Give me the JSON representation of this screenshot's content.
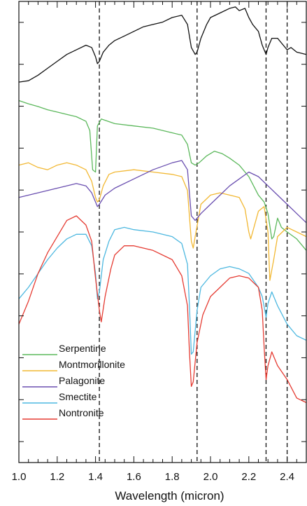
{
  "chart_data": {
    "type": "line",
    "title": "",
    "xlabel": "Wavelength (micron)",
    "ylabel": "",
    "xlim": [
      1.0,
      2.5
    ],
    "ylim": [
      0,
      100
    ],
    "x_ticks": [
      1.0,
      1.2,
      1.4,
      1.6,
      1.8,
      2.0,
      2.2,
      2.4
    ],
    "x_tick_labels": [
      "1.0",
      "1.2",
      "1.4",
      "1.6",
      "1.8",
      "2.0",
      "2.2",
      "2.4"
    ],
    "x_minor_step": 0.05,
    "y_tick_count": 11,
    "vlines": [
      1.42,
      1.93,
      2.29,
      2.4
    ],
    "legend": {
      "placement": "bottom-left"
    },
    "series": [
      {
        "name": "Serpentine",
        "color": "#5cb85c",
        "x": [
          1.0,
          1.05,
          1.1,
          1.15,
          1.2,
          1.25,
          1.3,
          1.35,
          1.37,
          1.385,
          1.4,
          1.41,
          1.43,
          1.5,
          1.6,
          1.7,
          1.8,
          1.85,
          1.88,
          1.9,
          1.92,
          1.94,
          1.98,
          2.02,
          2.06,
          2.1,
          2.15,
          2.2,
          2.25,
          2.28,
          2.3,
          2.32,
          2.33,
          2.35,
          2.37,
          2.4,
          2.45,
          2.5
        ],
        "y": [
          78.5,
          77.8,
          77.2,
          76.5,
          76.0,
          75.5,
          75.0,
          74.0,
          72.0,
          63.5,
          63.0,
          73.0,
          74.5,
          73.5,
          73.0,
          72.5,
          71.5,
          71.0,
          69.0,
          65.0,
          64.5,
          65.0,
          66.5,
          67.5,
          67.0,
          66.0,
          64.5,
          62.0,
          58.0,
          56.5,
          54.0,
          48.5,
          49.0,
          53.0,
          51.0,
          50.0,
          48.5,
          46.0
        ]
      },
      {
        "name": "Montmorillonite",
        "color": "#f2b833",
        "x": [
          1.0,
          1.05,
          1.1,
          1.15,
          1.2,
          1.25,
          1.3,
          1.35,
          1.38,
          1.4,
          1.41,
          1.42,
          1.44,
          1.47,
          1.5,
          1.6,
          1.7,
          1.8,
          1.85,
          1.88,
          1.9,
          1.91,
          1.92,
          1.95,
          2.0,
          2.05,
          2.1,
          2.15,
          2.18,
          2.2,
          2.21,
          2.22,
          2.25,
          2.28,
          2.3,
          2.31,
          2.33,
          2.35,
          2.4,
          2.45,
          2.5
        ],
        "y": [
          64.5,
          65.0,
          64.0,
          63.5,
          64.5,
          65.0,
          64.5,
          63.5,
          61.0,
          57.5,
          56.5,
          57.0,
          60.0,
          62.5,
          63.0,
          63.5,
          63.0,
          62.5,
          62.0,
          59.0,
          48.0,
          46.5,
          49.0,
          56.0,
          58.0,
          58.5,
          58.0,
          57.5,
          55.0,
          50.0,
          48.5,
          50.0,
          54.5,
          55.5,
          50.0,
          39.5,
          44.0,
          49.0,
          51.0,
          50.0,
          49.0
        ]
      },
      {
        "name": "Palagonite",
        "color": "#6a4fb0",
        "x": [
          1.0,
          1.1,
          1.2,
          1.3,
          1.35,
          1.38,
          1.4,
          1.41,
          1.42,
          1.45,
          1.5,
          1.6,
          1.7,
          1.8,
          1.85,
          1.88,
          1.9,
          1.92,
          1.95,
          2.0,
          2.05,
          2.1,
          2.15,
          2.2,
          2.25,
          2.3,
          2.35,
          2.4,
          2.45,
          2.5
        ],
        "y": [
          57.5,
          58.5,
          59.5,
          60.5,
          60.0,
          58.5,
          56.5,
          55.5,
          56.0,
          58.0,
          59.5,
          61.5,
          63.5,
          65.0,
          65.5,
          63.5,
          53.5,
          52.5,
          54.0,
          56.0,
          58.0,
          60.0,
          61.5,
          63.0,
          62.0,
          60.0,
          58.0,
          56.0,
          54.0,
          52.0
        ]
      },
      {
        "name": "Smectite",
        "color": "#4db8e0",
        "x": [
          1.0,
          1.05,
          1.1,
          1.15,
          1.2,
          1.25,
          1.3,
          1.35,
          1.38,
          1.4,
          1.41,
          1.42,
          1.44,
          1.47,
          1.5,
          1.55,
          1.6,
          1.7,
          1.8,
          1.85,
          1.88,
          1.89,
          1.9,
          1.91,
          1.93,
          1.95,
          2.0,
          2.05,
          2.1,
          2.15,
          2.2,
          2.25,
          2.27,
          2.29,
          2.3,
          2.32,
          2.35,
          2.4,
          2.45,
          2.5
        ],
        "y": [
          35.5,
          38.0,
          41.0,
          44.0,
          46.5,
          48.5,
          49.5,
          49.5,
          47.0,
          41.0,
          35.5,
          37.0,
          44.0,
          48.0,
          50.5,
          51.0,
          50.5,
          50.0,
          49.0,
          47.5,
          43.0,
          34.0,
          23.5,
          24.0,
          33.0,
          38.0,
          40.5,
          42.0,
          42.5,
          42.0,
          41.0,
          38.0,
          36.0,
          31.5,
          34.5,
          37.0,
          34.0,
          30.0,
          27.5,
          26.5
        ]
      },
      {
        "name": "Nontronite",
        "color": "#e53b32",
        "x": [
          1.0,
          1.05,
          1.1,
          1.15,
          1.2,
          1.25,
          1.3,
          1.35,
          1.38,
          1.4,
          1.42,
          1.43,
          1.45,
          1.48,
          1.5,
          1.55,
          1.6,
          1.7,
          1.8,
          1.85,
          1.88,
          1.89,
          1.9,
          1.91,
          1.93,
          1.96,
          2.0,
          2.05,
          2.1,
          2.15,
          2.2,
          2.25,
          2.27,
          2.28,
          2.29,
          2.3,
          2.32,
          2.35,
          2.4,
          2.45,
          2.5
        ],
        "y": [
          30.0,
          35.0,
          41.0,
          45.5,
          49.0,
          52.5,
          53.5,
          51.5,
          48.0,
          40.0,
          33.0,
          30.5,
          36.0,
          42.0,
          45.0,
          47.0,
          47.0,
          46.0,
          44.0,
          40.5,
          34.0,
          24.0,
          16.5,
          17.5,
          26.0,
          32.0,
          36.0,
          38.0,
          40.0,
          40.5,
          40.0,
          38.0,
          33.0,
          25.0,
          18.0,
          21.0,
          24.0,
          21.0,
          18.0,
          14.0,
          13.0
        ]
      },
      {
        "name": "",
        "color": "#111111",
        "x": [
          1.0,
          1.05,
          1.1,
          1.15,
          1.2,
          1.25,
          1.3,
          1.35,
          1.38,
          1.4,
          1.41,
          1.42,
          1.44,
          1.47,
          1.5,
          1.55,
          1.6,
          1.65,
          1.7,
          1.75,
          1.8,
          1.85,
          1.88,
          1.9,
          1.92,
          1.93,
          1.95,
          1.98,
          2.0,
          2.05,
          2.1,
          2.13,
          2.15,
          2.18,
          2.2,
          2.22,
          2.25,
          2.27,
          2.29,
          2.3,
          2.32,
          2.35,
          2.38,
          2.4,
          2.42,
          2.45,
          2.5
        ],
        "y": [
          82.5,
          82.8,
          84.0,
          85.5,
          87.0,
          88.5,
          89.5,
          90.5,
          90.0,
          88.0,
          86.5,
          87.0,
          89.0,
          90.5,
          91.5,
          92.5,
          93.5,
          94.5,
          95.0,
          95.5,
          96.5,
          97.0,
          95.0,
          90.0,
          88.5,
          89.0,
          92.0,
          95.0,
          96.5,
          97.5,
          98.5,
          98.8,
          98.0,
          98.5,
          96.5,
          95.0,
          93.5,
          90.5,
          88.5,
          90.0,
          92.0,
          92.0,
          90.5,
          89.5,
          90.0,
          89.0,
          88.5
        ]
      }
    ]
  }
}
